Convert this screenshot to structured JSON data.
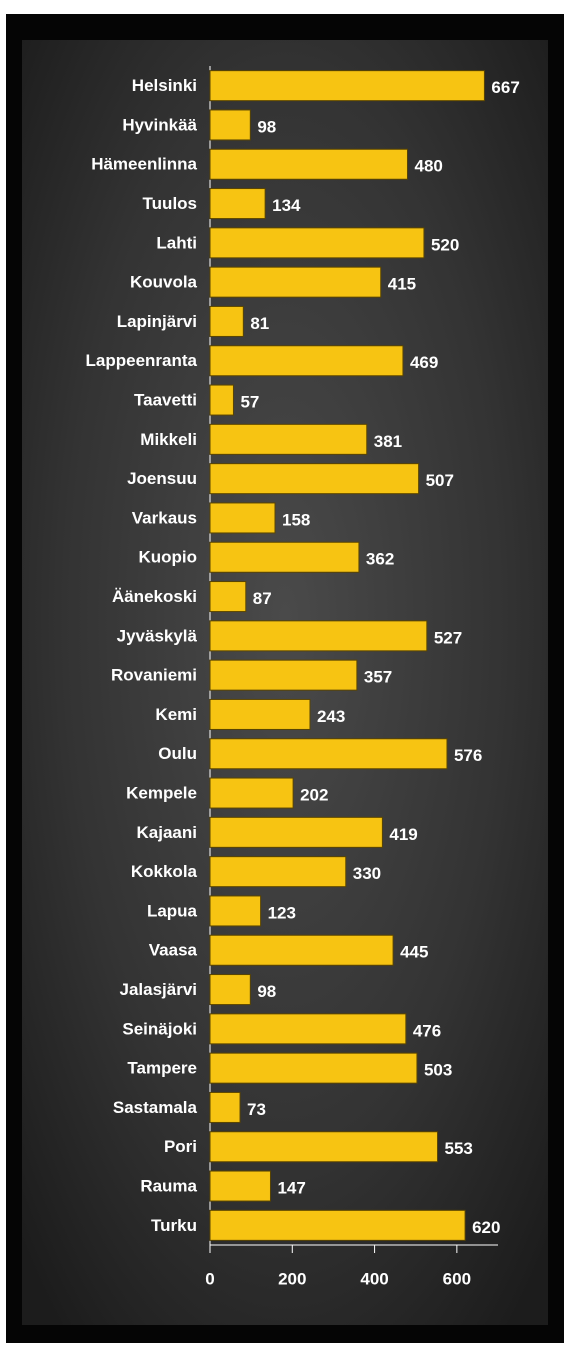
{
  "chart_data": {
    "type": "bar",
    "orientation": "horizontal",
    "categories": [
      "Helsinki",
      "Hyvinkää",
      "Hämeenlinna",
      "Tuulos",
      "Lahti",
      "Kouvola",
      "Lapinjärvi",
      "Lappeenranta",
      "Taavetti",
      "Mikkeli",
      "Joensuu",
      "Varkaus",
      "Kuopio",
      "Äänekoski",
      "Jyväskylä",
      "Rovaniemi",
      "Kemi",
      "Oulu",
      "Kempele",
      "Kajaani",
      "Kokkola",
      "Lapua",
      "Vaasa",
      "Jalasjärvi",
      "Seinäjoki",
      "Tampere",
      "Sastamala",
      "Pori",
      "Rauma",
      "Turku"
    ],
    "values": [
      667,
      98,
      480,
      134,
      520,
      415,
      81,
      469,
      57,
      381,
      507,
      158,
      362,
      87,
      527,
      357,
      243,
      576,
      202,
      419,
      330,
      123,
      445,
      98,
      476,
      503,
      73,
      553,
      147,
      620
    ],
    "color": "#f7c412",
    "xlim": [
      0,
      700
    ],
    "xticks": [
      0,
      200,
      400,
      600
    ]
  }
}
